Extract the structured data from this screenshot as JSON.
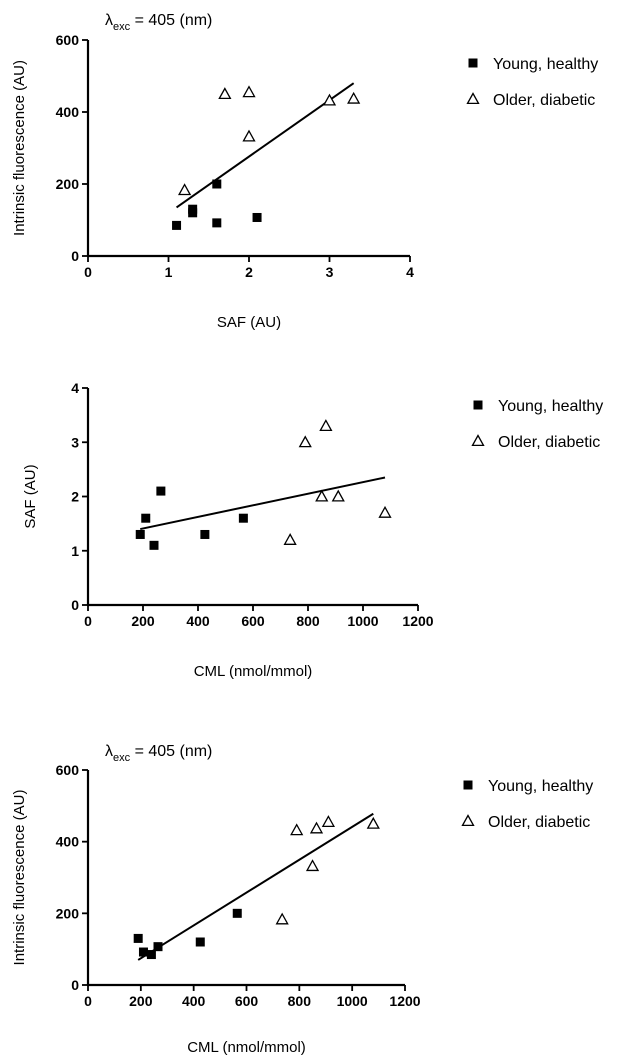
{
  "chart_data": [
    {
      "type": "scatter",
      "annotation": {
        "lambda": "λ",
        "sub": "exc",
        "rest": " = 405 (nm)"
      },
      "xlabel": "SAF (AU)",
      "ylabel": "Intrinsic fluorescence (AU)",
      "xlim": [
        0,
        4
      ],
      "ylim": [
        0,
        600
      ],
      "xticks": [
        0,
        1,
        2,
        3,
        4
      ],
      "yticks": [
        0,
        200,
        400,
        600
      ],
      "fit_line": {
        "x": [
          1.1,
          3.3
        ],
        "y": [
          135,
          480
        ]
      },
      "series": [
        {
          "name": "Young, healthy",
          "marker": "square",
          "x": [
            1.1,
            1.3,
            1.3,
            1.6,
            1.6,
            2.1
          ],
          "y": [
            85,
            120,
            130,
            200,
            92,
            107
          ]
        },
        {
          "name": "Older, diabetic",
          "marker": "triangle",
          "x": [
            1.2,
            1.7,
            2.0,
            2.0,
            3.0,
            3.3
          ],
          "y": [
            183,
            450,
            455,
            332,
            432,
            437
          ]
        }
      ]
    },
    {
      "type": "scatter",
      "xlabel": "CML (nmol/mmol)",
      "ylabel": "SAF (AU)",
      "xlim": [
        0,
        1200
      ],
      "ylim": [
        0,
        4
      ],
      "xticks": [
        0,
        200,
        400,
        600,
        800,
        1000,
        1200
      ],
      "yticks": [
        0,
        1,
        2,
        3,
        4
      ],
      "fit_line": {
        "x": [
          190,
          1080
        ],
        "y": [
          1.4,
          2.35
        ]
      },
      "series": [
        {
          "name": "Young, healthy",
          "marker": "square",
          "x": [
            190,
            210,
            240,
            265,
            425,
            565
          ],
          "y": [
            1.3,
            1.6,
            1.1,
            2.1,
            1.3,
            1.6
          ]
        },
        {
          "name": "Older, diabetic",
          "marker": "triangle",
          "x": [
            735,
            790,
            850,
            865,
            910,
            1080
          ],
          "y": [
            1.2,
            3.0,
            2.0,
            3.3,
            2.0,
            1.7
          ]
        }
      ]
    },
    {
      "type": "scatter",
      "annotation": {
        "lambda": "λ",
        "sub": "exc",
        "rest": " = 405 (nm)"
      },
      "xlabel": "CML (nmol/mmol)",
      "ylabel": "Intrinsic fluorescence (AU)",
      "xlim": [
        0,
        1200
      ],
      "ylim": [
        0,
        600
      ],
      "xticks": [
        0,
        200,
        400,
        600,
        800,
        1000,
        1200
      ],
      "yticks": [
        0,
        200,
        400,
        600
      ],
      "fit_line": {
        "x": [
          190,
          1080
        ],
        "y": [
          70,
          478
        ]
      },
      "series": [
        {
          "name": "Young, healthy",
          "marker": "square",
          "x": [
            190,
            210,
            240,
            265,
            425,
            565
          ],
          "y": [
            130,
            92,
            85,
            107,
            120,
            200
          ]
        },
        {
          "name": "Older, diabetic",
          "marker": "triangle",
          "x": [
            735,
            790,
            850,
            865,
            910,
            1080
          ],
          "y": [
            183,
            432,
            332,
            437,
            455,
            450
          ]
        }
      ]
    }
  ]
}
